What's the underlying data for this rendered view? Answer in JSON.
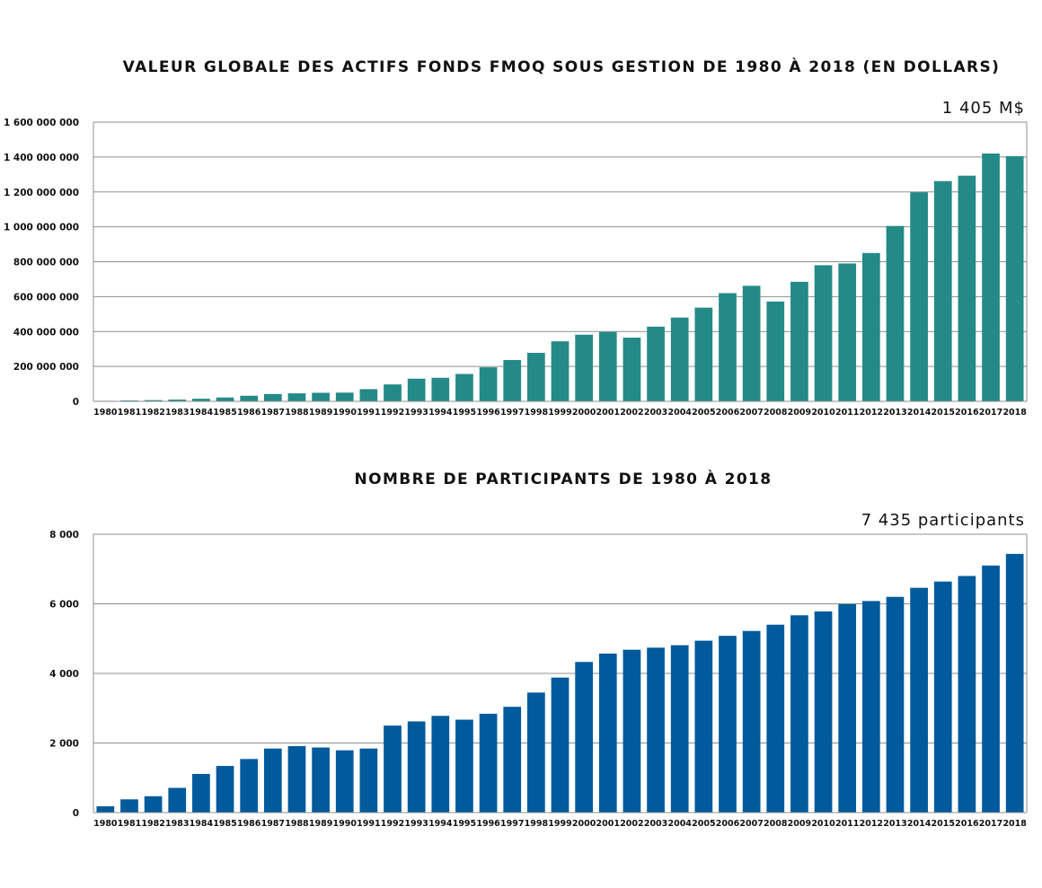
{
  "chart_data": [
    {
      "type": "bar",
      "title": "VALEUR GLOBALE DES ACTIFS FONDS FMOQ SOUS GESTION DE 1980 À 2018 (EN DOLLARS)",
      "annotation": "1 405 M$",
      "xlabel": "",
      "ylabel": "",
      "ylim": [
        0,
        1600000000
      ],
      "grid": true,
      "color": "#248a87",
      "yticks": [
        {
          "value": 0,
          "label": "0"
        },
        {
          "value": 200000000,
          "label": "200 000 000"
        },
        {
          "value": 400000000,
          "label": "400 000 000"
        },
        {
          "value": 600000000,
          "label": "600 000 000"
        },
        {
          "value": 800000000,
          "label": "800 000 000"
        },
        {
          "value": 1000000000,
          "label": "1 000 000 000"
        },
        {
          "value": 1200000000,
          "label": "1 200 000 000"
        },
        {
          "value": 1400000000,
          "label": "1 400 000 000"
        },
        {
          "value": 1600000000,
          "label": "1 600 000 000"
        }
      ],
      "categories": [
        "1980",
        "1981",
        "1982",
        "1983",
        "1984",
        "1985",
        "1986",
        "1987",
        "1988",
        "1989",
        "1990",
        "1991",
        "1992",
        "1993",
        "1994",
        "1995",
        "1996",
        "1997",
        "1998",
        "1999",
        "2000",
        "2001",
        "2002",
        "2003",
        "2004",
        "2005",
        "2006",
        "2007",
        "2008",
        "2009",
        "2010",
        "2011",
        "2012",
        "2013",
        "2014",
        "2015",
        "2016",
        "2017",
        "2018"
      ],
      "values": [
        1000000,
        5000000,
        7000000,
        10000000,
        15000000,
        22000000,
        32000000,
        42000000,
        46000000,
        49000000,
        50000000,
        70000000,
        97000000,
        130000000,
        135000000,
        157000000,
        195000000,
        237000000,
        278000000,
        344000000,
        382000000,
        398000000,
        365000000,
        428000000,
        480000000,
        537000000,
        620000000,
        662000000,
        572000000,
        685000000,
        780000000,
        790000000,
        850000000,
        1005000000,
        1198000000,
        1262000000,
        1293000000,
        1420000000,
        1405000000
      ]
    },
    {
      "type": "bar",
      "title": "NOMBRE DE PARTICIPANTS DE 1980 À 2018",
      "annotation": "7 435 participants",
      "xlabel": "",
      "ylabel": "",
      "ylim": [
        0,
        8000
      ],
      "grid": true,
      "color": "#005a9c",
      "yticks": [
        {
          "value": 0,
          "label": "0"
        },
        {
          "value": 2000,
          "label": "2 000"
        },
        {
          "value": 4000,
          "label": "4 000"
        },
        {
          "value": 6000,
          "label": "6 000"
        },
        {
          "value": 8000,
          "label": "8 000"
        }
      ],
      "categories": [
        "1980",
        "1981",
        "1982",
        "1983",
        "1984",
        "1985",
        "1986",
        "1987",
        "1988",
        "1989",
        "1990",
        "1991",
        "1992",
        "1993",
        "1994",
        "1995",
        "1996",
        "1997",
        "1998",
        "1999",
        "2000",
        "2001",
        "2002",
        "2003",
        "2004",
        "2005",
        "2006",
        "2007",
        "2008",
        "2009",
        "2010",
        "2011",
        "2012",
        "2013",
        "2014",
        "2015",
        "2016",
        "2017",
        "2018"
      ],
      "values": [
        180,
        380,
        470,
        710,
        1110,
        1340,
        1540,
        1840,
        1910,
        1870,
        1790,
        1840,
        2500,
        2620,
        2780,
        2670,
        2840,
        3040,
        3450,
        3880,
        4330,
        4570,
        4680,
        4740,
        4810,
        4940,
        5080,
        5220,
        5400,
        5670,
        5780,
        5990,
        6080,
        6200,
        6460,
        6640,
        6800,
        7100,
        7435
      ]
    }
  ]
}
